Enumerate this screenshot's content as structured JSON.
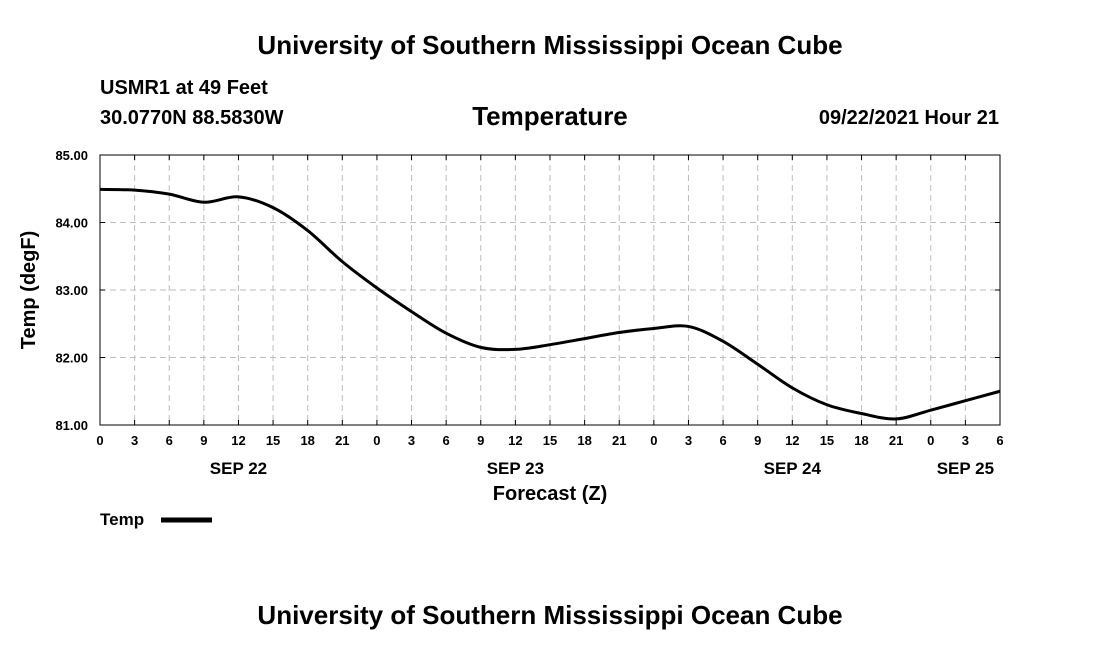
{
  "header": {
    "title": "University of Southern Mississippi Ocean Cube",
    "station": "USMR1 at 49 Feet",
    "coordinates": "30.0770N  88.5830W",
    "datetime": "09/22/2021 Hour 21"
  },
  "footer": {
    "title": "University of Southern Mississippi Ocean Cube"
  },
  "chart_data": {
    "type": "line",
    "title": "Temperature",
    "xlabel": "Forecast (Z)",
    "ylabel": "Temp (degF)",
    "ylim": [
      81.0,
      85.0
    ],
    "y_ticks": [
      "81.00",
      "82.00",
      "83.00",
      "84.00",
      "85.00"
    ],
    "xlim_hours": [
      0,
      78
    ],
    "x_tick_labels": [
      "0",
      "3",
      "6",
      "9",
      "12",
      "15",
      "18",
      "21",
      "0",
      "3",
      "6",
      "9",
      "12",
      "15",
      "18",
      "21",
      "0",
      "3",
      "6",
      "9",
      "12",
      "15",
      "18",
      "21",
      "0",
      "3",
      "6"
    ],
    "day_labels": [
      {
        "label": "SEP 22",
        "hour": 12
      },
      {
        "label": "SEP 23",
        "hour": 36
      },
      {
        "label": "SEP 24",
        "hour": 60
      },
      {
        "label": "SEP 25",
        "hour": 75
      }
    ],
    "grid": true,
    "legend_position": "bottom-left",
    "series": [
      {
        "name": "Temp",
        "color": "#000000",
        "x": [
          0,
          3,
          6,
          9,
          12,
          15,
          18,
          21,
          24,
          27,
          30,
          33,
          36,
          39,
          42,
          45,
          48,
          51,
          54,
          57,
          60,
          63,
          66,
          69,
          72,
          75,
          78
        ],
        "values": [
          84.49,
          84.48,
          84.42,
          84.3,
          84.38,
          84.22,
          83.88,
          83.42,
          83.03,
          82.68,
          82.36,
          82.15,
          82.12,
          82.19,
          82.28,
          82.37,
          82.43,
          82.46,
          82.24,
          81.9,
          81.55,
          81.3,
          81.17,
          81.09,
          81.22,
          81.36,
          81.5
        ]
      }
    ]
  }
}
